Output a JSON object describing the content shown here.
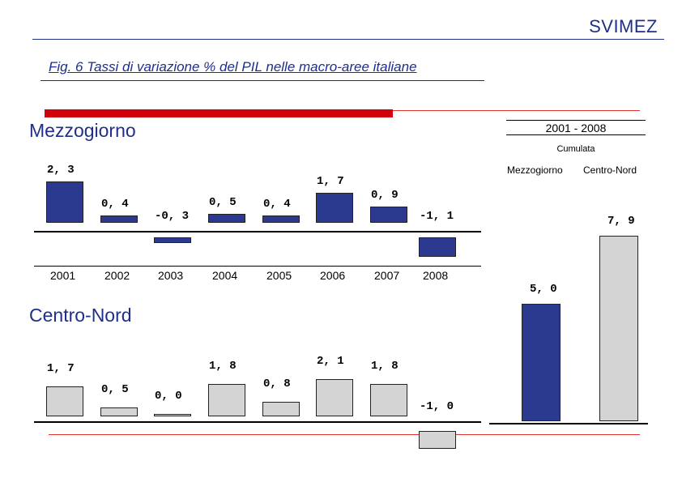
{
  "header": {
    "brand": "SVIMEZ",
    "figure_title": "Fig. 6 Tassi di variazione % del PIL nelle macro-aree italiane"
  },
  "colors": {
    "mezzogiorno": "#2b3a8f",
    "centro_nord": "#d4d4d4",
    "accent_red": "#d0000c",
    "brand_blue": "#1f2f8a"
  },
  "chart_data": [
    {
      "type": "bar",
      "title": "Mezzogiorno",
      "categories": [
        "2001",
        "2002",
        "2003",
        "2004",
        "2005",
        "2006",
        "2007",
        "2008"
      ],
      "values": [
        2.3,
        0.4,
        -0.3,
        0.5,
        0.4,
        1.7,
        0.9,
        -1.1
      ],
      "value_labels": [
        "2, 3",
        "0, 4",
        "-0, 3",
        "0, 5",
        "0, 4",
        "1, 7",
        "0, 9",
        "-1, 1"
      ],
      "color": "#2b3a8f"
    },
    {
      "type": "bar",
      "title": "Centro-Nord",
      "categories": [
        "2001",
        "2002",
        "2003",
        "2004",
        "2005",
        "2006",
        "2007",
        "2008"
      ],
      "values": [
        1.7,
        0.5,
        0.0,
        1.8,
        0.8,
        2.1,
        1.8,
        -1.0
      ],
      "value_labels": [
        "1, 7",
        "0, 5",
        "0, 0",
        "1, 8",
        "0, 8",
        "2, 1",
        "1, 8",
        "-1, 0"
      ],
      "color": "#d4d4d4"
    },
    {
      "type": "bar",
      "title": "2001 - 2008",
      "subtitle": "Cumulata",
      "categories": [
        "Mezzogiorno",
        "Centro-Nord"
      ],
      "values": [
        5.0,
        7.9
      ],
      "value_labels": [
        "5, 0",
        "7, 9"
      ],
      "colors": [
        "#2b3a8f",
        "#d4d4d4"
      ]
    }
  ]
}
